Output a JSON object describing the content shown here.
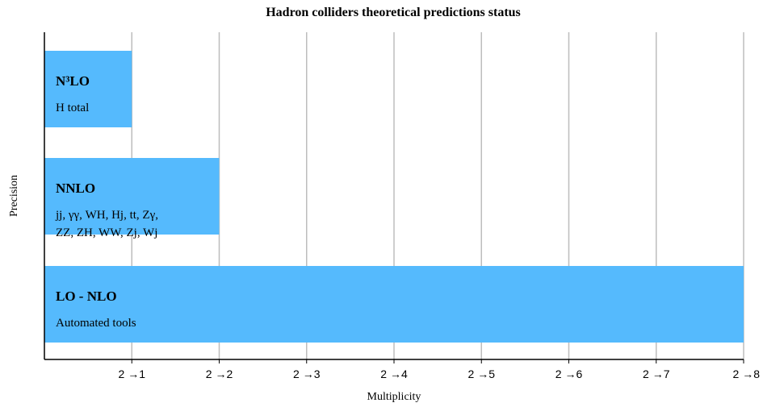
{
  "chart_data": {
    "type": "bar",
    "orientation": "horizontal",
    "title": "Hadron colliders theoretical predictions status",
    "xlabel": "Multiplicity",
    "ylabel": "Precision",
    "x_ticks": [
      "2 →1",
      "2 →2",
      "2 →3",
      "2 →4",
      "2 →5",
      "2 →6",
      "2 →7",
      "2 →8"
    ],
    "xlim": [
      0,
      8
    ],
    "grid": "vertical",
    "bar_color": "#55bafd",
    "categories": [
      "N³LO",
      "NNLO",
      "LO - NLO"
    ],
    "values": [
      1,
      2,
      8
    ],
    "bars": [
      {
        "label": "N³LO",
        "value": 1,
        "lines": [
          "H total"
        ]
      },
      {
        "label": "NNLO",
        "value": 2,
        "lines": [
          "jj, γγ, WH, Hj, tt, Zγ,",
          "ZZ, ZH, WW, Zj, Wj"
        ]
      },
      {
        "label": "LO - NLO",
        "value": 8,
        "lines": [
          "Automated tools"
        ]
      }
    ]
  }
}
